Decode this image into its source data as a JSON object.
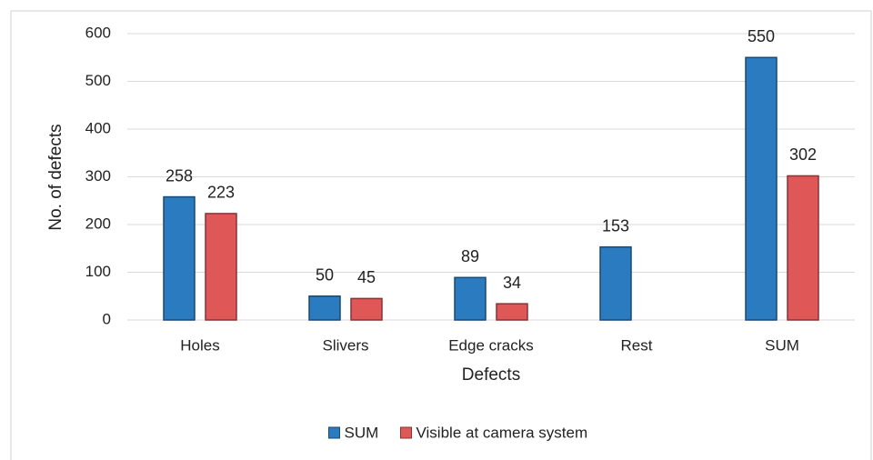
{
  "chart_data": {
    "type": "bar",
    "x_label": "Defects",
    "y_label": "No. of defects",
    "categories": [
      "Holes",
      "Slivers",
      "Edge cracks",
      "Rest",
      "SUM"
    ],
    "series": [
      {
        "name": "SUM",
        "color": "#2a7bc0",
        "values": [
          258,
          50,
          89,
          153,
          550
        ]
      },
      {
        "name": "Visible at camera system",
        "color": "#e05757",
        "values": [
          223,
          45,
          34,
          null,
          302
        ]
      }
    ],
    "ylim": [
      0,
      600
    ],
    "yticks": [
      0,
      100,
      200,
      300,
      400,
      500,
      600
    ],
    "grid": true,
    "legend": "bottom"
  }
}
